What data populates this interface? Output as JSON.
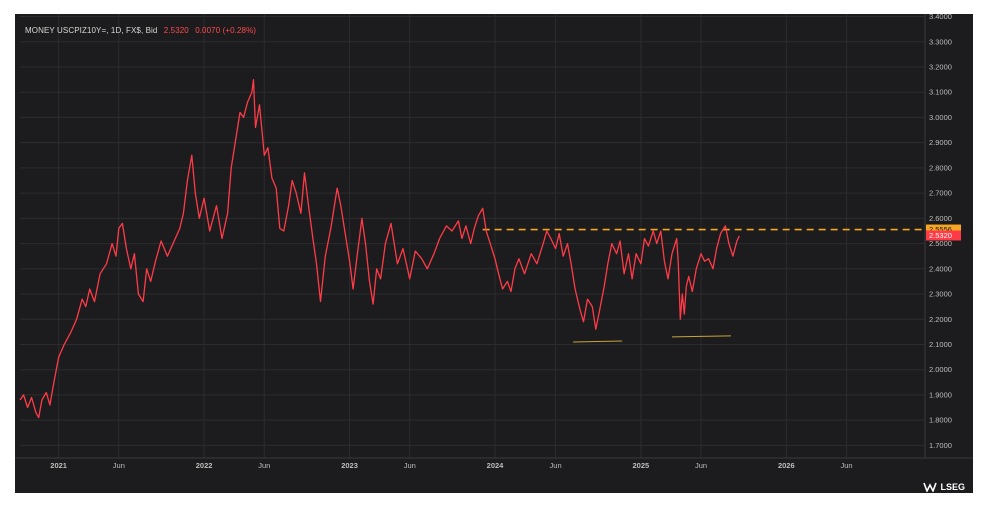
{
  "header": {
    "symbol": "MONEY USCPIZ10Y=, 1D, FX$, Bid",
    "bid": "2.5320",
    "change": "0.0070 (+0.28%)"
  },
  "logo_text": "LSEG",
  "colors": {
    "background": "#1c1c1e",
    "line": "#ff3b47",
    "reference": "#f5a623",
    "support": "#c9a43a",
    "grid": "#2c2c2e",
    "last_badge": "#ff3b47",
    "ref_badge": "#f5a623"
  },
  "chart_data": {
    "type": "line",
    "title": "",
    "xlabel": "",
    "ylabel": "",
    "ylim": [
      1.65,
      3.41
    ],
    "xlim": [
      "2020-09-26",
      "2026-12-15"
    ],
    "grid": true,
    "y_ticks": [
      "1.7000",
      "1.8000",
      "1.9000",
      "2.0000",
      "2.1000",
      "2.2000",
      "2.3000",
      "2.4000",
      "2.5000",
      "2.6000",
      "2.7000",
      "2.8000",
      "2.9000",
      "3.0000",
      "3.1000",
      "3.2000",
      "3.3000",
      "3.4000"
    ],
    "x_ticks": [
      {
        "date": "2021-01-01",
        "label": "2021"
      },
      {
        "date": "2021-06-01",
        "label": "Jun"
      },
      {
        "date": "2022-01-01",
        "label": "2022"
      },
      {
        "date": "2022-06-01",
        "label": "Jun"
      },
      {
        "date": "2023-01-01",
        "label": "2023"
      },
      {
        "date": "2023-06-01",
        "label": "Jun"
      },
      {
        "date": "2024-01-01",
        "label": "2024"
      },
      {
        "date": "2024-06-01",
        "label": "Jun"
      },
      {
        "date": "2025-01-01",
        "label": "2025"
      },
      {
        "date": "2025-06-01",
        "label": "Jun"
      },
      {
        "date": "2026-01-01",
        "label": "2026"
      },
      {
        "date": "2026-06-01",
        "label": "Jun"
      }
    ],
    "series": [
      {
        "name": "",
        "points": [
          [
            "2020-09-26",
            1.88
          ],
          [
            "2020-10-05",
            1.9
          ],
          [
            "2020-10-15",
            1.85
          ],
          [
            "2020-10-25",
            1.89
          ],
          [
            "2020-11-05",
            1.83
          ],
          [
            "2020-11-12",
            1.81
          ],
          [
            "2020-11-20",
            1.88
          ],
          [
            "2020-12-01",
            1.91
          ],
          [
            "2020-12-10",
            1.86
          ],
          [
            "2020-12-20",
            1.95
          ],
          [
            "2021-01-01",
            2.05
          ],
          [
            "2021-01-15",
            2.1
          ],
          [
            "2021-02-01",
            2.15
          ],
          [
            "2021-02-15",
            2.2
          ],
          [
            "2021-03-01",
            2.28
          ],
          [
            "2021-03-10",
            2.25
          ],
          [
            "2021-03-20",
            2.32
          ],
          [
            "2021-04-01",
            2.27
          ],
          [
            "2021-04-15",
            2.38
          ],
          [
            "2021-05-01",
            2.42
          ],
          [
            "2021-05-15",
            2.5
          ],
          [
            "2021-05-25",
            2.45
          ],
          [
            "2021-06-01",
            2.56
          ],
          [
            "2021-06-10",
            2.58
          ],
          [
            "2021-06-20",
            2.48
          ],
          [
            "2021-07-01",
            2.4
          ],
          [
            "2021-07-10",
            2.46
          ],
          [
            "2021-07-20",
            2.3
          ],
          [
            "2021-08-01",
            2.27
          ],
          [
            "2021-08-10",
            2.4
          ],
          [
            "2021-08-20",
            2.35
          ],
          [
            "2021-09-01",
            2.43
          ],
          [
            "2021-09-15",
            2.51
          ],
          [
            "2021-10-01",
            2.45
          ],
          [
            "2021-10-15",
            2.5
          ],
          [
            "2021-11-01",
            2.56
          ],
          [
            "2021-11-10",
            2.62
          ],
          [
            "2021-11-20",
            2.75
          ],
          [
            "2021-12-01",
            2.85
          ],
          [
            "2021-12-10",
            2.7
          ],
          [
            "2021-12-20",
            2.6
          ],
          [
            "2022-01-01",
            2.68
          ],
          [
            "2022-01-15",
            2.55
          ],
          [
            "2022-02-01",
            2.65
          ],
          [
            "2022-02-15",
            2.52
          ],
          [
            "2022-03-01",
            2.62
          ],
          [
            "2022-03-10",
            2.8
          ],
          [
            "2022-03-20",
            2.9
          ],
          [
            "2022-04-01",
            3.02
          ],
          [
            "2022-04-10",
            3.0
          ],
          [
            "2022-04-20",
            3.06
          ],
          [
            "2022-05-01",
            3.1
          ],
          [
            "2022-05-05",
            3.15
          ],
          [
            "2022-05-10",
            2.96
          ],
          [
            "2022-05-20",
            3.05
          ],
          [
            "2022-06-01",
            2.85
          ],
          [
            "2022-06-10",
            2.88
          ],
          [
            "2022-06-20",
            2.76
          ],
          [
            "2022-07-01",
            2.72
          ],
          [
            "2022-07-10",
            2.56
          ],
          [
            "2022-07-20",
            2.55
          ],
          [
            "2022-08-01",
            2.65
          ],
          [
            "2022-08-10",
            2.75
          ],
          [
            "2022-08-20",
            2.7
          ],
          [
            "2022-09-01",
            2.62
          ],
          [
            "2022-09-10",
            2.78
          ],
          [
            "2022-09-20",
            2.65
          ],
          [
            "2022-10-01",
            2.52
          ],
          [
            "2022-10-10",
            2.42
          ],
          [
            "2022-10-20",
            2.27
          ],
          [
            "2022-11-01",
            2.45
          ],
          [
            "2022-11-15",
            2.56
          ],
          [
            "2022-12-01",
            2.72
          ],
          [
            "2022-12-10",
            2.65
          ],
          [
            "2022-12-20",
            2.55
          ],
          [
            "2023-01-01",
            2.43
          ],
          [
            "2023-01-10",
            2.32
          ],
          [
            "2023-01-20",
            2.45
          ],
          [
            "2023-02-01",
            2.6
          ],
          [
            "2023-02-10",
            2.5
          ],
          [
            "2023-02-20",
            2.35
          ],
          [
            "2023-03-01",
            2.26
          ],
          [
            "2023-03-10",
            2.4
          ],
          [
            "2023-03-20",
            2.36
          ],
          [
            "2023-04-01",
            2.5
          ],
          [
            "2023-04-15",
            2.58
          ],
          [
            "2023-05-01",
            2.42
          ],
          [
            "2023-05-15",
            2.48
          ],
          [
            "2023-06-01",
            2.36
          ],
          [
            "2023-06-15",
            2.47
          ],
          [
            "2023-07-01",
            2.44
          ],
          [
            "2023-07-15",
            2.4
          ],
          [
            "2023-08-01",
            2.46
          ],
          [
            "2023-08-15",
            2.52
          ],
          [
            "2023-09-01",
            2.57
          ],
          [
            "2023-09-15",
            2.55
          ],
          [
            "2023-10-01",
            2.59
          ],
          [
            "2023-10-10",
            2.52
          ],
          [
            "2023-10-20",
            2.57
          ],
          [
            "2023-11-01",
            2.5
          ],
          [
            "2023-11-10",
            2.56
          ],
          [
            "2023-11-20",
            2.61
          ],
          [
            "2023-12-01",
            2.64
          ],
          [
            "2023-12-10",
            2.55
          ],
          [
            "2023-12-20",
            2.5
          ],
          [
            "2024-01-01",
            2.44
          ],
          [
            "2024-01-10",
            2.38
          ],
          [
            "2024-01-20",
            2.32
          ],
          [
            "2024-02-01",
            2.35
          ],
          [
            "2024-02-10",
            2.31
          ],
          [
            "2024-02-20",
            2.4
          ],
          [
            "2024-03-01",
            2.44
          ],
          [
            "2024-03-15",
            2.38
          ],
          [
            "2024-04-01",
            2.46
          ],
          [
            "2024-04-15",
            2.42
          ],
          [
            "2024-05-01",
            2.5
          ],
          [
            "2024-05-10",
            2.55
          ],
          [
            "2024-05-20",
            2.52
          ],
          [
            "2024-06-01",
            2.48
          ],
          [
            "2024-06-10",
            2.54
          ],
          [
            "2024-06-20",
            2.45
          ],
          [
            "2024-07-01",
            2.5
          ],
          [
            "2024-07-10",
            2.42
          ],
          [
            "2024-07-20",
            2.32
          ],
          [
            "2024-08-01",
            2.24
          ],
          [
            "2024-08-10",
            2.19
          ],
          [
            "2024-08-20",
            2.28
          ],
          [
            "2024-09-01",
            2.25
          ],
          [
            "2024-09-10",
            2.16
          ],
          [
            "2024-09-20",
            2.24
          ],
          [
            "2024-10-01",
            2.33
          ],
          [
            "2024-10-10",
            2.42
          ],
          [
            "2024-10-20",
            2.5
          ],
          [
            "2024-11-01",
            2.46
          ],
          [
            "2024-11-10",
            2.51
          ],
          [
            "2024-11-20",
            2.38
          ],
          [
            "2024-12-01",
            2.46
          ],
          [
            "2024-12-10",
            2.36
          ],
          [
            "2024-12-20",
            2.46
          ],
          [
            "2025-01-01",
            2.42
          ],
          [
            "2025-01-10",
            2.52
          ],
          [
            "2025-01-20",
            2.49
          ],
          [
            "2025-02-01",
            2.55
          ],
          [
            "2025-02-10",
            2.5
          ],
          [
            "2025-02-20",
            2.55
          ],
          [
            "2025-03-01",
            2.43
          ],
          [
            "2025-03-10",
            2.36
          ],
          [
            "2025-03-20",
            2.46
          ],
          [
            "2025-04-01",
            2.52
          ],
          [
            "2025-04-05",
            2.42
          ],
          [
            "2025-04-10",
            2.2
          ],
          [
            "2025-04-15",
            2.3
          ],
          [
            "2025-04-20",
            2.22
          ],
          [
            "2025-04-25",
            2.33
          ],
          [
            "2025-05-01",
            2.37
          ],
          [
            "2025-05-10",
            2.31
          ],
          [
            "2025-05-20",
            2.4
          ],
          [
            "2025-06-01",
            2.46
          ],
          [
            "2025-06-10",
            2.43
          ],
          [
            "2025-06-20",
            2.44
          ],
          [
            "2025-07-01",
            2.4
          ],
          [
            "2025-07-10",
            2.48
          ],
          [
            "2025-07-20",
            2.54
          ],
          [
            "2025-08-01",
            2.57
          ],
          [
            "2025-08-10",
            2.5
          ],
          [
            "2025-08-20",
            2.45
          ],
          [
            "2025-08-30",
            2.51
          ],
          [
            "2025-09-05",
            2.53
          ]
        ]
      }
    ],
    "reference_line": {
      "value": 2.5556,
      "label": "2.5556",
      "from": "2023-12-01"
    },
    "last_value": {
      "value": 2.532,
      "label": "2.5320"
    },
    "support_lines": [
      {
        "from": "2024-07-15",
        "to": "2024-11-15",
        "value": 2.11
      },
      {
        "from": "2025-03-20",
        "to": "2025-08-15",
        "value": 2.13
      }
    ]
  }
}
